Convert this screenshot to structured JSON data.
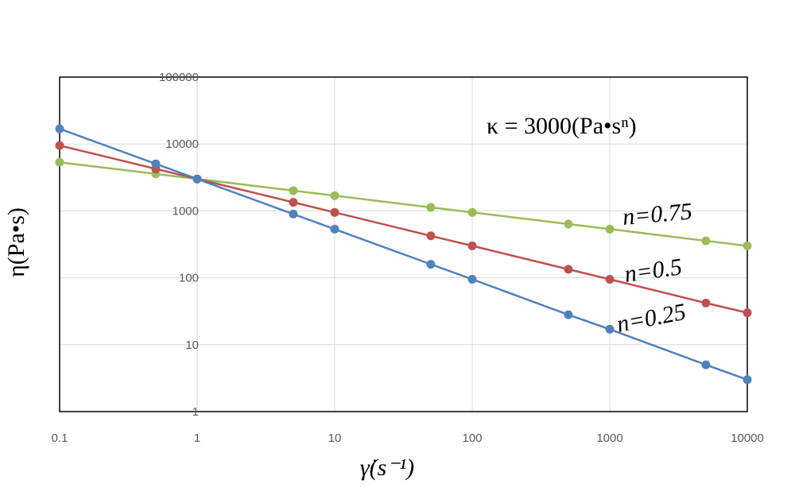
{
  "chart_data": {
    "type": "line",
    "x_scale": "log",
    "y_scale": "log",
    "xlim": [
      0.1,
      10000
    ],
    "ylim": [
      1,
      100000
    ],
    "x_ticks": [
      "0.1",
      "1",
      "10",
      "100",
      "1000",
      "10000"
    ],
    "y_ticks": [
      "1",
      "10",
      "100",
      "1000",
      "10000",
      "100000"
    ],
    "grid": true,
    "xlabel": "γ̇(s⁻¹)",
    "ylabel": "η(Pa•s)",
    "annotation": "κ = 3000(Pa•sⁿ)",
    "x": [
      0.1,
      0.5,
      1,
      5,
      10,
      50,
      100,
      500,
      1000,
      5000,
      10000
    ],
    "series": [
      {
        "name": "n=0.75",
        "color": "#9bbb59",
        "values": [
          5335,
          3568,
          3000,
          2006,
          1687,
          1128,
          949,
          635,
          534,
          357,
          300
        ]
      },
      {
        "name": "n=0.5",
        "color": "#c0504d",
        "values": [
          9487,
          4243,
          3000,
          1342,
          949,
          424,
          300,
          134,
          95,
          42,
          30
        ]
      },
      {
        "name": "n=0.25",
        "color": "#4f81bd",
        "values": [
          16870,
          5045,
          3000,
          897,
          533,
          159,
          95,
          28,
          17,
          5,
          3
        ]
      }
    ]
  }
}
